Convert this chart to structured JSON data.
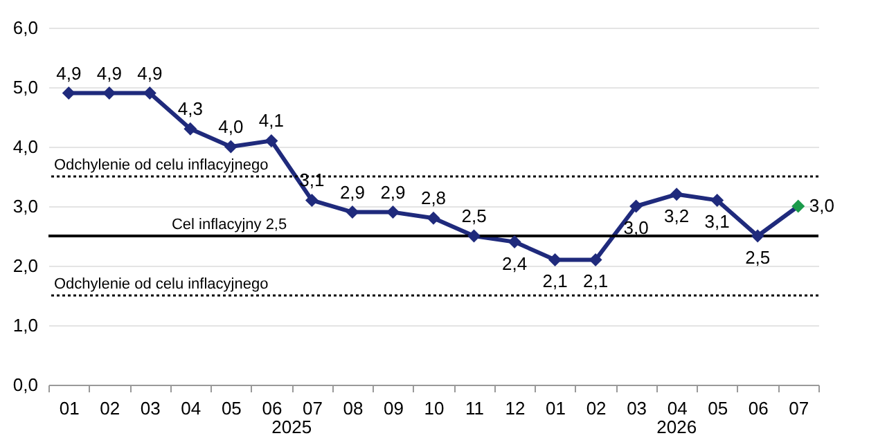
{
  "chart_data": {
    "type": "line",
    "categories": [
      "01",
      "02",
      "03",
      "04",
      "05",
      "06",
      "07",
      "08",
      "09",
      "10",
      "11",
      "12",
      "01",
      "02",
      "03",
      "04",
      "05",
      "06",
      "07"
    ],
    "values": [
      4.9,
      4.9,
      4.9,
      4.3,
      4.0,
      4.1,
      3.1,
      2.9,
      2.9,
      2.8,
      2.5,
      2.4,
      2.1,
      2.1,
      3.0,
      3.2,
      3.1,
      2.5,
      3.0
    ],
    "color": "#1f2a7c",
    "colors": [
      "#1f2a7c",
      "#1f2a7c",
      "#1f2a7c",
      "#1f2a7c",
      "#1f2a7c",
      "#1f2a7c",
      "#1f2a7c",
      "#1f2a7c",
      "#1f2a7c",
      "#1f2a7c",
      "#1f2a7c",
      "#1f2a7c",
      "#1f2a7c",
      "#1f2a7c",
      "#1f2a7c",
      "#1f2a7c",
      "#1f2a7c",
      "#1f2a7c",
      "#1a9a4a"
    ],
    "value_labels": [
      "4,9",
      "4,9",
      "4,9",
      "4,3",
      "4,0",
      "4,1",
      "3,1",
      "2,9",
      "2,9",
      "2,8",
      "2,5",
      "2,4",
      "2,1",
      "2,1",
      "3,0",
      "3,2",
      "3,1",
      "2,5",
      "3,0"
    ],
    "marker": "diamond",
    "grid": "y",
    "ylim": [
      0,
      6
    ],
    "yticks": [
      {
        "value": 0,
        "label": "0,0"
      },
      {
        "value": 1,
        "label": "1,0"
      },
      {
        "value": 2,
        "label": "2,0"
      },
      {
        "value": 3,
        "label": "3,0"
      },
      {
        "value": 4,
        "label": "4,0"
      },
      {
        "value": 5,
        "label": "5,0"
      },
      {
        "value": 6,
        "label": "6,0"
      }
    ],
    "ref_lines": [
      {
        "axis": "y",
        "value": 3.5,
        "label": "Odchylenie od celu inflacyjnego",
        "line_style": "dotted",
        "color": "#000000"
      },
      {
        "axis": "y",
        "value": 2.5,
        "label": "Cel inflacyjny 2,5",
        "line_style": "solid",
        "color": "#000000"
      },
      {
        "axis": "y",
        "value": 1.5,
        "label": "Odchylenie od celu inflacyjnego",
        "line_style": "dotted",
        "color": "#000000"
      }
    ],
    "annotations": [
      "2025",
      "2026"
    ]
  }
}
